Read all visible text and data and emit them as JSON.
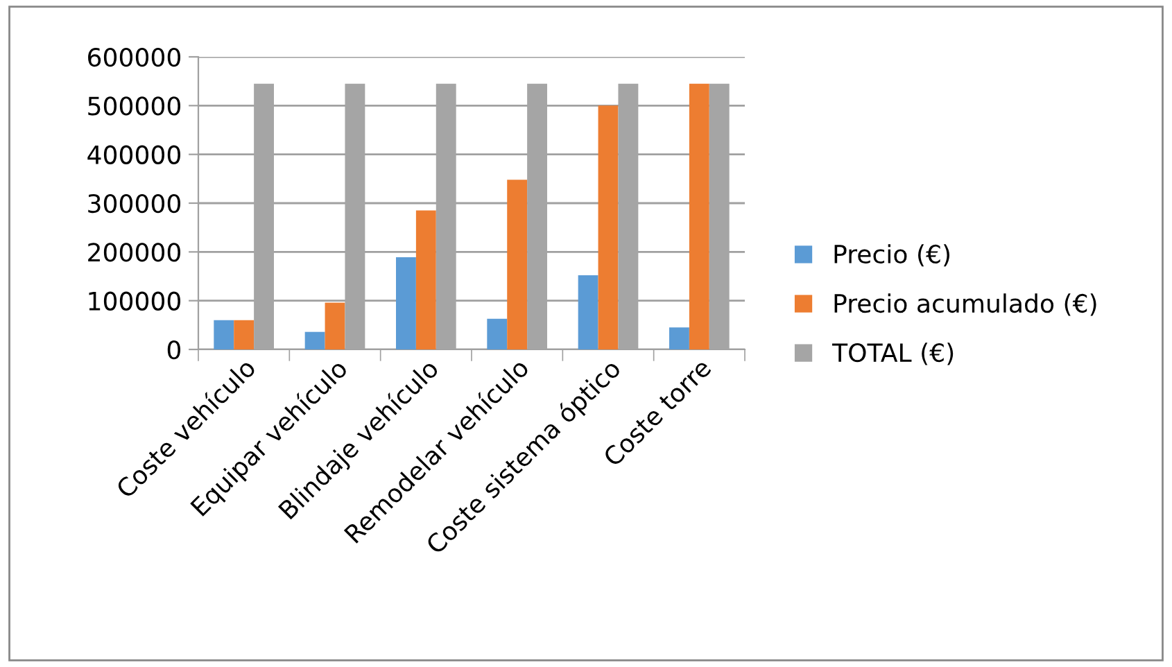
{
  "chart_data": {
    "type": "bar",
    "categories": [
      "Coste vehículo",
      "Equipar vehículo",
      "Blindaje vehículo",
      "Remodelar vehículo",
      "Coste sistema óptico",
      "Coste torre"
    ],
    "series": [
      {
        "name": "Precio (€)",
        "color": "#5b9bd5",
        "values": [
          60000,
          36000,
          189000,
          63000,
          152000,
          45000
        ]
      },
      {
        "name": "Precio acumulado (€)",
        "color": "#ed7d31",
        "values": [
          60000,
          96000,
          285000,
          348000,
          500000,
          545000
        ]
      },
      {
        "name": "TOTAL (€)",
        "color": "#a5a5a5",
        "values": [
          545000,
          545000,
          545000,
          545000,
          545000,
          545000
        ]
      }
    ],
    "ylim": [
      0,
      600000
    ],
    "yticks": [
      0,
      100000,
      200000,
      300000,
      400000,
      500000,
      600000
    ],
    "grid": "y",
    "legend": "right"
  }
}
